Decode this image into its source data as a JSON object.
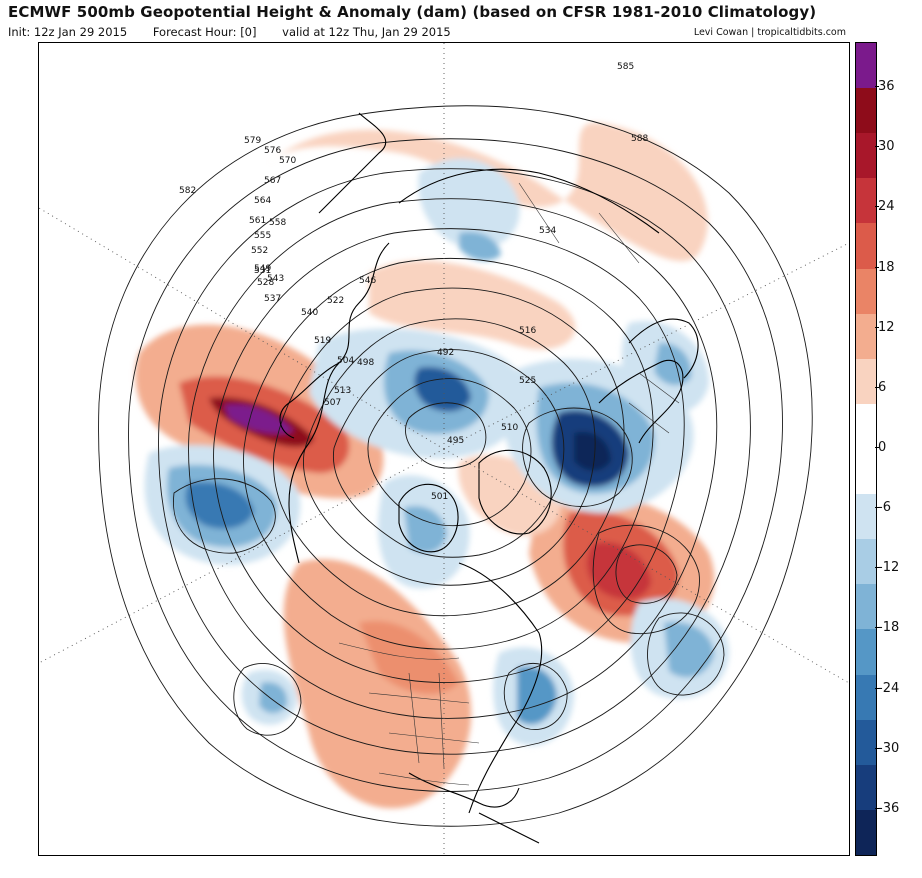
{
  "header": {
    "title": "ECMWF 500mb Geopotential Height & Anomaly (dam) (based on CFSR 1981-2010 Climatology)",
    "init": "Init: 12z Jan 29 2015",
    "forecast_hour": "Forecast Hour: [0]",
    "valid": "valid at 12z Thu, Jan 29 2015",
    "credit": "Levi Cowan | tropicaltidbits.com"
  },
  "colorbar": {
    "ticks": [
      "36",
      "30",
      "24",
      "18",
      "12",
      "6",
      "0",
      "-6",
      "-12",
      "-18",
      "-24",
      "-30",
      "-36"
    ],
    "colors": [
      "#7b1a8c",
      "#8e0c1a",
      "#a8172a",
      "#c6343a",
      "#dc5b4a",
      "#ea8466",
      "#f3ad8f",
      "#f9d3c0",
      "#ffffff",
      "#ffffff",
      "#cfe3f1",
      "#a9cde5",
      "#7fb3d6",
      "#5597c6",
      "#3779b3",
      "#235a9a",
      "#173d7c",
      "#0e2558"
    ]
  },
  "map": {
    "colors": {
      "positive_light": "#f9d3c0",
      "positive_mid": "#ec8f6e",
      "positive_strong": "#c13a3b",
      "positive_max": "#7b1a8c",
      "negative_light": "#cfe3f1",
      "negative_mid": "#7fb3d6",
      "negative_strong": "#235a9a",
      "negative_max": "#0e2558"
    },
    "contour_labels": [
      {
        "text": "585"
      },
      {
        "text": "588"
      },
      {
        "text": "582"
      },
      {
        "text": "579"
      },
      {
        "text": "576"
      },
      {
        "text": "570"
      },
      {
        "text": "567"
      },
      {
        "text": "564"
      },
      {
        "text": "561"
      },
      {
        "text": "558"
      },
      {
        "text": "555"
      },
      {
        "text": "552"
      },
      {
        "text": "549"
      },
      {
        "text": "546"
      },
      {
        "text": "543"
      },
      {
        "text": "540"
      },
      {
        "text": "537"
      },
      {
        "text": "534"
      },
      {
        "text": "531"
      },
      {
        "text": "528"
      },
      {
        "text": "525"
      },
      {
        "text": "522"
      },
      {
        "text": "519"
      },
      {
        "text": "516"
      },
      {
        "text": "513"
      },
      {
        "text": "510"
      },
      {
        "text": "507"
      },
      {
        "text": "504"
      },
      {
        "text": "501"
      },
      {
        "text": "498"
      },
      {
        "text": "495"
      },
      {
        "text": "492"
      }
    ]
  }
}
